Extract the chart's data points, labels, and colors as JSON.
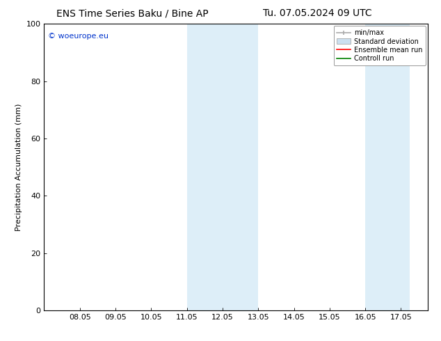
{
  "title_left": "ENS Time Series Baku / Bine AP",
  "title_right": "Tu. 07.05.2024 09 UTC",
  "ylabel": "Precipitation Accumulation (mm)",
  "ylim": [
    0,
    100
  ],
  "yticks": [
    0,
    20,
    40,
    60,
    80,
    100
  ],
  "xtick_labels": [
    "08.05",
    "09.05",
    "10.05",
    "11.05",
    "12.05",
    "13.05",
    "14.05",
    "15.05",
    "16.05",
    "17.05"
  ],
  "xtick_positions": [
    1,
    2,
    3,
    4,
    5,
    6,
    7,
    8,
    9,
    10
  ],
  "xlim": [
    0.0,
    10.75
  ],
  "shaded_regions": [
    {
      "x_start": 4.0,
      "x_end": 6.0,
      "color": "#ddeef8"
    },
    {
      "x_start": 9.0,
      "x_end": 10.25,
      "color": "#ddeef8"
    }
  ],
  "watermark_text": "© woeurope.eu",
  "watermark_color": "#0033cc",
  "legend_entries": [
    {
      "label": "min/max",
      "color": "#aaaaaa",
      "style": "minmax"
    },
    {
      "label": "Standard deviation",
      "color": "#cce0f0",
      "style": "stddev"
    },
    {
      "label": "Ensemble mean run",
      "color": "#ff0000",
      "style": "line"
    },
    {
      "label": "Controll run",
      "color": "#008000",
      "style": "line"
    }
  ],
  "bg_color": "#ffffff",
  "plot_bg_color": "#ffffff",
  "title_fontsize": 10,
  "axis_fontsize": 8,
  "tick_fontsize": 8,
  "watermark_fontsize": 8,
  "legend_fontsize": 7
}
